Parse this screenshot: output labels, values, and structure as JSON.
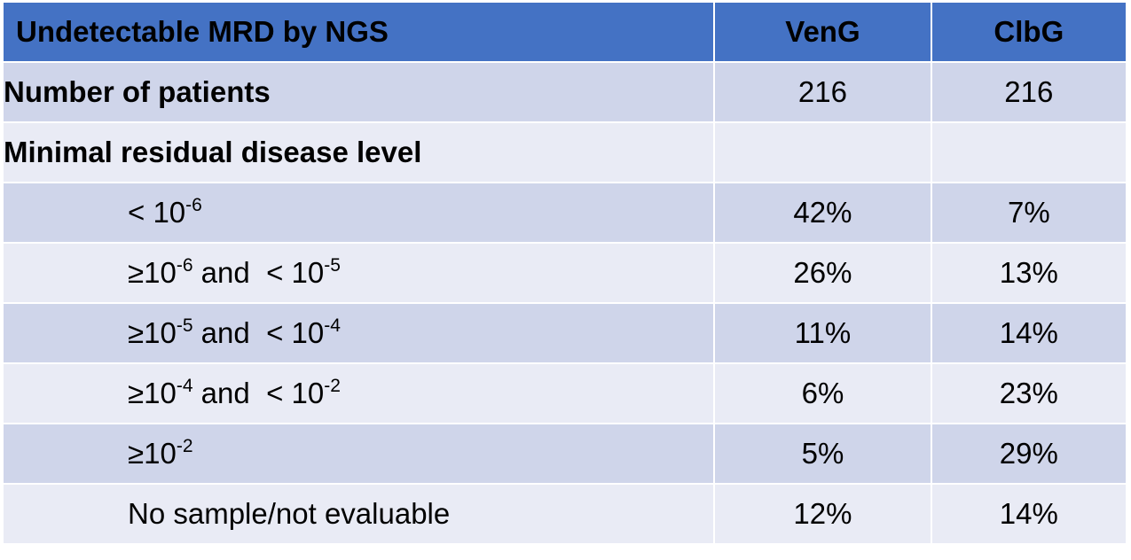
{
  "table": {
    "header": {
      "label": "Undetectable MRD by NGS",
      "col_veng": "VenG",
      "col_clbg": "ClbG"
    },
    "rows": [
      {
        "label": "Number of patients",
        "veng": "216",
        "clbg": "216"
      },
      {
        "label": "Minimal residual disease level",
        "veng": "",
        "clbg": ""
      },
      {
        "label_parts": [
          "< 10",
          "-6"
        ],
        "veng": "42%",
        "clbg": "7%"
      },
      {
        "label_parts": [
          "≥10",
          "-6",
          " and  < 10",
          "-5"
        ],
        "veng": "26%",
        "clbg": "13%"
      },
      {
        "label_parts": [
          "≥10",
          "-5",
          " and  < 10",
          "-4"
        ],
        "veng": "11%",
        "clbg": "14%"
      },
      {
        "label_parts": [
          "≥10",
          "-4",
          " and  < 10",
          "-2"
        ],
        "veng": "6%",
        "clbg": "23%"
      },
      {
        "label_parts": [
          "≥10",
          "-2"
        ],
        "veng": "5%",
        "clbg": "29%"
      },
      {
        "label": "No sample/not evaluable",
        "veng": "12%",
        "clbg": "14%"
      }
    ]
  },
  "colors": {
    "header_bg": "#4472c4",
    "row_dark": "#cfd5ea",
    "row_light": "#e9ebf5",
    "header_text": "#ffffff"
  }
}
